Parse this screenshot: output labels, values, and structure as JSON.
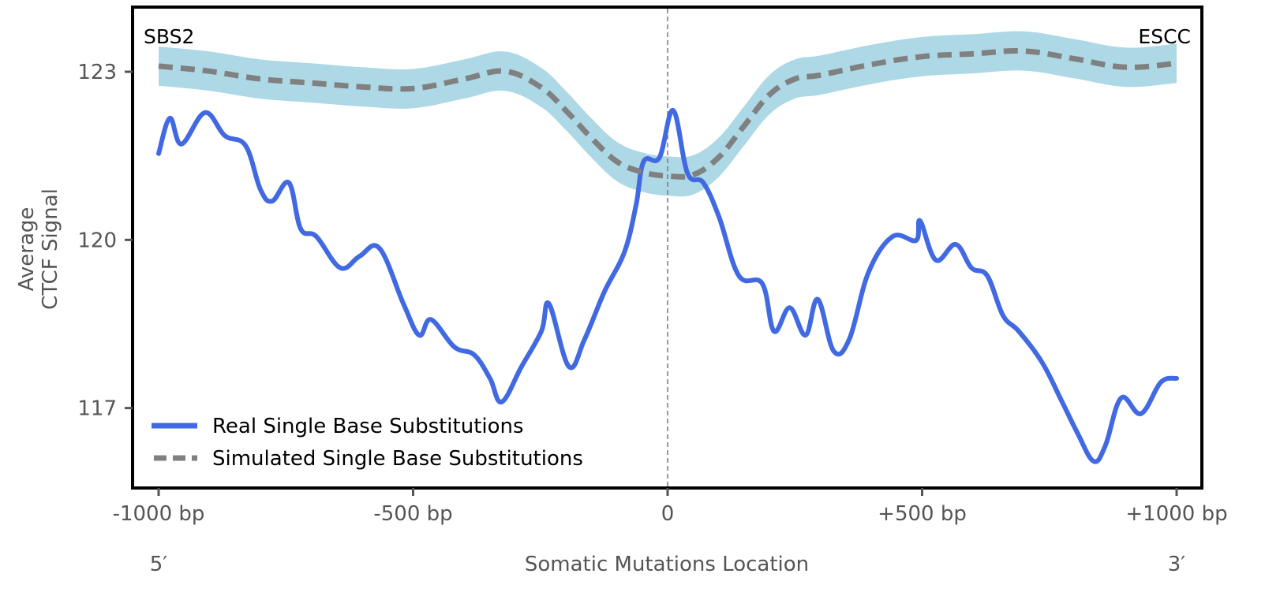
{
  "chart_data": {
    "type": "line",
    "title": "",
    "xlabel": "Somatic Mutations Location",
    "ylabel": "Average\nCTCF Signal",
    "ylabel_lines": [
      "Average",
      "CTCF Signal"
    ],
    "xlim": [
      -1000,
      1000
    ],
    "ylim": [
      115.6,
      124.15
    ],
    "grid": false,
    "x_ticks": [
      {
        "value": -1000,
        "label": "-1000 bp"
      },
      {
        "value": -500,
        "label": "-500 bp"
      },
      {
        "value": 0,
        "label": "0"
      },
      {
        "value": 500,
        "label": "+500 bp"
      },
      {
        "value": 1000,
        "label": "+1000 bp"
      }
    ],
    "y_ticks": [
      {
        "value": 117,
        "label": "117"
      },
      {
        "value": 120,
        "label": "120"
      },
      {
        "value": 123,
        "label": "123"
      }
    ],
    "annotations": {
      "top_left": "SBS2",
      "top_right": "ESCC",
      "bottom_left": "5′",
      "bottom_right": "3′",
      "center_line_x": 0
    },
    "legend": {
      "placement": "lower-left",
      "entries": [
        {
          "label": "Real Single Base Substitutions",
          "style": "solid",
          "color": "#4169e1"
        },
        {
          "label": "Simulated Single Base Substitutions",
          "style": "dashed",
          "color": "#808080"
        }
      ]
    },
    "colors": {
      "real": "#4169e1",
      "simulated": "#808080",
      "band": "#add8e6",
      "center_line": "#808080"
    },
    "series": [
      {
        "name": "Real Single Base Substitutions",
        "style": "solid",
        "x": [
          -1000,
          -978,
          -955,
          -909,
          -870,
          -829,
          -800,
          -777,
          -744,
          -721,
          -690,
          -643,
          -605,
          -566,
          -519,
          -488,
          -465,
          -419,
          -380,
          -349,
          -326,
          -287,
          -248,
          -233,
          -194,
          -163,
          -124,
          -85,
          -62,
          -47,
          -16,
          11,
          39,
          70,
          101,
          140,
          186,
          209,
          240,
          271,
          295,
          326,
          357,
          395,
          442,
          488,
          496,
          527,
          566,
          597,
          628,
          659,
          690,
          736,
          775,
          806,
          837,
          860,
          891,
          930,
          969,
          1000
        ],
        "y": [
          121.54,
          122.17,
          121.71,
          122.27,
          121.86,
          121.68,
          120.9,
          120.69,
          121.02,
          120.2,
          120.06,
          119.5,
          119.71,
          119.85,
          118.86,
          118.3,
          118.58,
          118.09,
          117.95,
          117.53,
          117.11,
          117.74,
          118.37,
          118.86,
          117.74,
          118.23,
          119.08,
          119.78,
          120.62,
          121.4,
          121.47,
          122.31,
          121.19,
          121.02,
          120.41,
          119.36,
          119.22,
          118.37,
          118.79,
          118.3,
          118.94,
          118.02,
          118.23,
          119.43,
          120.06,
          119.99,
          120.34,
          119.64,
          119.92,
          119.5,
          119.36,
          118.65,
          118.37,
          117.81,
          117.11,
          116.54,
          116.05,
          116.33,
          117.18,
          116.9,
          117.46,
          117.53
        ]
      },
      {
        "name": "Simulated Single Base Substitutions",
        "style": "dashed",
        "x": [
          -1000,
          -900,
          -800,
          -700,
          -600,
          -500,
          -400,
          -320,
          -250,
          -200,
          -150,
          -100,
          -50,
          0,
          50,
          100,
          150,
          200,
          250,
          300,
          400,
          500,
          600,
          700,
          800,
          900,
          1000
        ],
        "y": [
          123.1,
          123.01,
          122.87,
          122.8,
          122.73,
          122.7,
          122.87,
          123.01,
          122.73,
          122.31,
          121.82,
          121.4,
          121.21,
          121.14,
          121.16,
          121.47,
          122.03,
          122.59,
          122.87,
          122.94,
          123.13,
          123.27,
          123.32,
          123.37,
          123.23,
          123.08,
          123.15
        ],
        "band_halfwidth": 0.35
      }
    ]
  }
}
